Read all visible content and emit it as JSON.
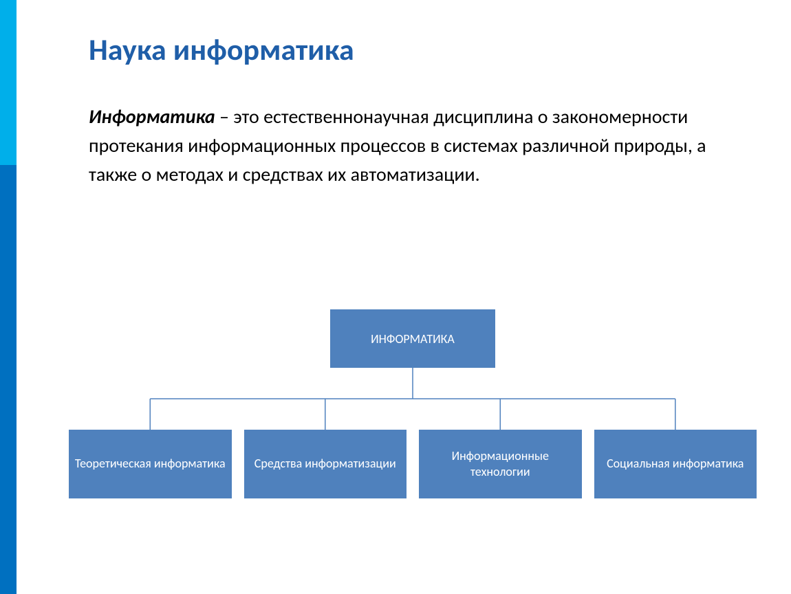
{
  "slide": {
    "title": "Наука информатика",
    "title_color": "#1f5ea8",
    "title_fontsize": 44,
    "definition_term": "Информатика",
    "definition_text": " – это естественнонаучная дисциплина о закономерности протекания информационных процессов в системах различной природы, а также о методах и средствах их автоматизации.",
    "definition_fontsize": 28,
    "definition_color": "#000000"
  },
  "sidebar": {
    "top_color": "#00afea",
    "bottom_color": "#0070c0"
  },
  "diagram": {
    "type": "tree",
    "root": {
      "label": "ИНФОРМАТИКА",
      "bg_color": "#4f81bd",
      "text_color": "#ffffff",
      "fontsize": 18
    },
    "children": [
      {
        "label": "Теоретическая информатика"
      },
      {
        "label": "Средства информатизации"
      },
      {
        "label": "Информационные технологии"
      },
      {
        "label": "Социальная информатика"
      }
    ],
    "child_bg_color": "#4f81bd",
    "child_text_color": "#ffffff",
    "child_fontsize": 18,
    "connector_color": "#4f81bd",
    "connector_width": 1.5
  },
  "background_color": "#ffffff"
}
